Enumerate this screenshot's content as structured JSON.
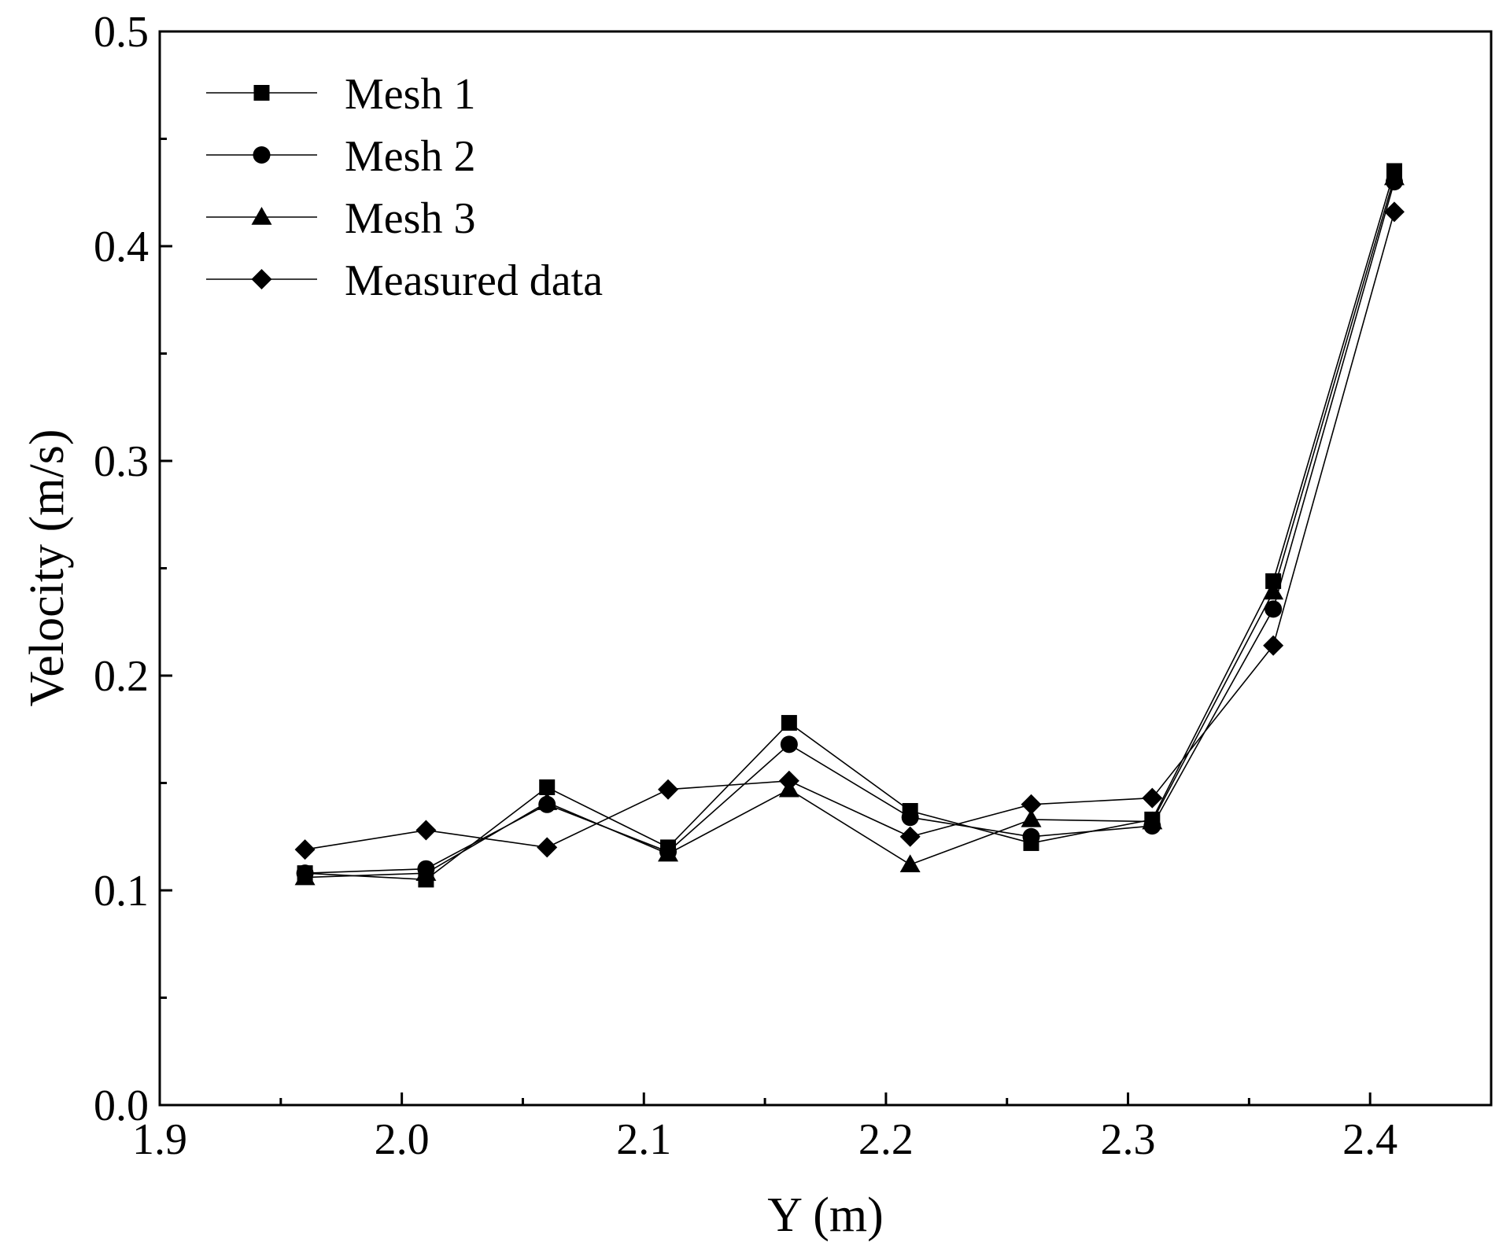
{
  "chart_data": {
    "type": "line",
    "title": "",
    "xlabel": "Y (m)",
    "ylabel": "Velocity (m/s)",
    "xlim": [
      1.9,
      2.45
    ],
    "ylim": [
      0.0,
      0.5
    ],
    "xticks": [
      "1.9",
      "2.0",
      "2.1",
      "2.2",
      "2.3",
      "2.4"
    ],
    "yticks": [
      "0.0",
      "0.1",
      "0.2",
      "0.3",
      "0.4",
      "0.5"
    ],
    "x": [
      1.96,
      2.01,
      2.06,
      2.11,
      2.16,
      2.21,
      2.26,
      2.31,
      2.36,
      2.41
    ],
    "legend_position": "top-left",
    "series": [
      {
        "name": "Mesh 1",
        "marker": "square",
        "values": [
          0.108,
          0.105,
          0.148,
          0.12,
          0.178,
          0.137,
          0.122,
          0.133,
          0.244,
          0.435
        ]
      },
      {
        "name": "Mesh 2",
        "marker": "circle",
        "values": [
          0.108,
          0.11,
          0.14,
          0.118,
          0.168,
          0.134,
          0.125,
          0.13,
          0.231,
          0.43
        ]
      },
      {
        "name": "Mesh 3",
        "marker": "triangle",
        "values": [
          0.106,
          0.108,
          0.141,
          0.117,
          0.147,
          0.112,
          0.133,
          0.132,
          0.239,
          0.432
        ]
      },
      {
        "name": "Measured data",
        "marker": "diamond",
        "values": [
          0.119,
          0.128,
          0.12,
          0.147,
          0.151,
          0.125,
          0.14,
          0.143,
          0.214,
          0.416
        ]
      }
    ],
    "colors": {
      "line": "#000000",
      "marker": "#000000",
      "frame": "#000000"
    }
  }
}
